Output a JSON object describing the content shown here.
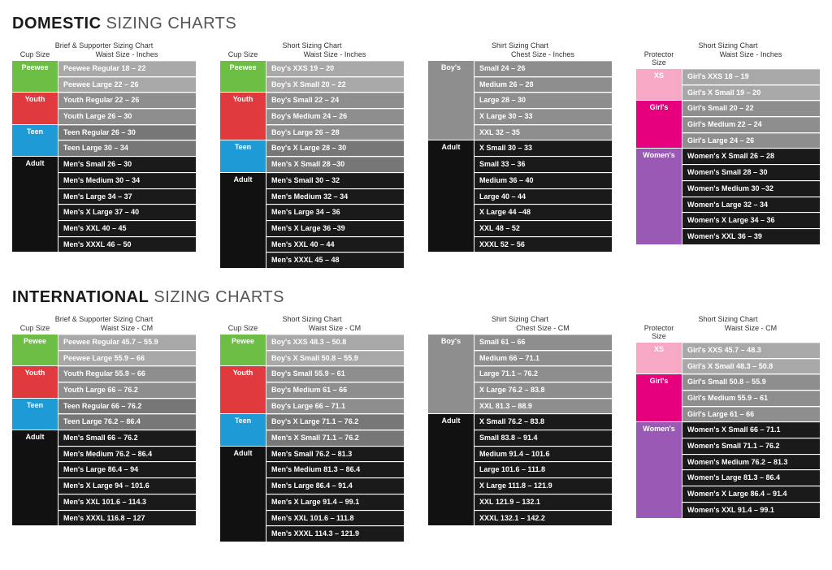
{
  "titles": {
    "domestic_bold": "DOMESTIC",
    "domestic_light": " SIZING CHARTS",
    "international_bold": "INTERNATIONAL",
    "international_light": " SIZING CHARTS"
  },
  "colors": {
    "bg_white": "#ffffff",
    "text_dark": "#333333",
    "peewee": "#6cbe45",
    "peewee_row": "#a8a8a8",
    "youth": "#e03a3e",
    "youth_row": "#8e8e8e",
    "teen": "#1e9bd7",
    "teen_row": "#777777",
    "adult": "#111111",
    "adult_row": "#1a1a1a",
    "boys_label": "#8e8e8e",
    "boys_row": "#8e8e8e",
    "adult_shirt": "#111111",
    "xs": "#f7a8c4",
    "xs_row": "#a8a8a8",
    "girls": "#e6007e",
    "girls_row": "#8e8e8e",
    "womens": "#9b59b6",
    "womens_row": "#1a1a1a",
    "row_border": "#3a3a3a"
  },
  "domestic": {
    "charts": [
      {
        "title": "Brief & Supporter Sizing Chart",
        "col1": "Cup Size",
        "col2": "Waist Size - Inches",
        "groups": [
          {
            "label": "Peewee",
            "labelColor": "peewee",
            "rowColor": "peewee_row",
            "rows": [
              "Peewee Regular 18 – 22",
              "Peewee Large 22 – 26"
            ]
          },
          {
            "label": "Youth",
            "labelColor": "youth",
            "rowColor": "youth_row",
            "rows": [
              "Youth Regular 22 – 26",
              "Youth Large 26 – 30"
            ]
          },
          {
            "label": "Teen",
            "labelColor": "teen",
            "rowColor": "teen_row",
            "rows": [
              "Teen Regular 26 – 30",
              "Teen Large 30 – 34"
            ]
          },
          {
            "label": "Adult",
            "labelColor": "adult",
            "rowColor": "adult_row",
            "rows": [
              "Men's Small 26 – 30",
              "Men's Medium 30 – 34",
              "Men's Large 34 – 37",
              "Men's X Large 37 – 40",
              "Men's XXL 40 – 45",
              "Men's XXXL 46 – 50"
            ]
          }
        ]
      },
      {
        "title": "Short Sizing Chart",
        "col1": "Cup Size",
        "col2": "Waist Size - Inches",
        "groups": [
          {
            "label": "Peewee",
            "labelColor": "peewee",
            "rowColor": "peewee_row",
            "rows": [
              "Boy's XXS 19 – 20",
              "Boy's X Small 20 – 22"
            ]
          },
          {
            "label": "Youth",
            "labelColor": "youth",
            "rowColor": "youth_row",
            "rows": [
              "Boy's Small 22 – 24",
              "Boy's Medium 24 – 26",
              "Boy's Large 26 – 28"
            ]
          },
          {
            "label": "Teen",
            "labelColor": "teen",
            "rowColor": "teen_row",
            "rows": [
              "Boy's X Large 28 – 30",
              "Men's X Small 28 –30"
            ]
          },
          {
            "label": "Adult",
            "labelColor": "adult",
            "rowColor": "adult_row",
            "rows": [
              "Men's Small 30 – 32",
              "Men's Medium 32 – 34",
              "Men's Large 34 – 36",
              "Men's X Large 36 –39",
              "Men's XXL 40 – 44",
              "Men's XXXL 45 – 48"
            ]
          }
        ]
      },
      {
        "title": "Shirt Sizing Chart",
        "col1": "",
        "col2": "Chest Size - Inches",
        "groups": [
          {
            "label": "Boy's",
            "labelColor": "boys_label",
            "rowColor": "boys_row",
            "rows": [
              "Small 24 – 26",
              "Medium 26 – 28",
              "Large 28 – 30",
              "X Large 30 – 33",
              "XXL 32 – 35"
            ]
          },
          {
            "label": "Adult",
            "labelColor": "adult",
            "rowColor": "adult_row",
            "rows": [
              "X Small 30 – 33",
              "Small 33 – 36",
              "Medium 36 – 40",
              "Large 40 – 44",
              "X Large 44 –48",
              "XXL 48 – 52",
              "XXXL 52 – 56"
            ]
          }
        ]
      },
      {
        "title": "Short Sizing Chart",
        "col1": "Protector Size",
        "col2": "Waist Size - Inches",
        "groups": [
          {
            "label": "XS",
            "labelColor": "xs",
            "rowColor": "xs_row",
            "rows": [
              "Girl's XXS 18 – 19",
              "Girl's X Small 19 – 20"
            ]
          },
          {
            "label": "Girl's",
            "labelColor": "girls",
            "rowColor": "girls_row",
            "rows": [
              "Girl's Small 20 – 22",
              "Girl's Medium 22 – 24",
              "Girl's Large 24 – 26"
            ]
          },
          {
            "label": "Women's",
            "labelColor": "womens",
            "rowColor": "womens_row",
            "rows": [
              "Women's X Small 26 – 28",
              "Women's Small 28 – 30",
              "Women's Medium 30 –32",
              "Women's Large 32 – 34",
              "Women's X Large 34 – 36",
              "Women's XXL 36 – 39"
            ]
          }
        ]
      }
    ]
  },
  "international": {
    "charts": [
      {
        "title": "Brief & Supporter Sizing Chart",
        "col1": "Cup Size",
        "col2": "Waist Size - CM",
        "groups": [
          {
            "label": "Pewee",
            "labelColor": "peewee",
            "rowColor": "peewee_row",
            "rows": [
              "Peewee Regular 45.7 – 55.9",
              "Peewee Large 55.9 – 66"
            ]
          },
          {
            "label": "Youth",
            "labelColor": "youth",
            "rowColor": "youth_row",
            "rows": [
              "Youth Regular 55.9 – 66",
              "Youth Large 66 – 76.2"
            ]
          },
          {
            "label": "Teen",
            "labelColor": "teen",
            "rowColor": "teen_row",
            "rows": [
              "Teen Regular 66 – 76.2",
              "Teen Large 76.2 – 86.4"
            ]
          },
          {
            "label": "Adult",
            "labelColor": "adult",
            "rowColor": "adult_row",
            "rows": [
              "Men's Small 66 – 76.2",
              "Men's Medium 76.2 – 86.4",
              "Men's Large 86.4 – 94",
              "Men's X Large 94 – 101.6",
              "Men's XXL 101.6 – 114.3",
              "Men's XXXL 116.8 – 127"
            ]
          }
        ]
      },
      {
        "title": "Short Sizing Chart",
        "col1": "Cup Size",
        "col2": "Waist Size - CM",
        "groups": [
          {
            "label": "Pewee",
            "labelColor": "peewee",
            "rowColor": "peewee_row",
            "rows": [
              "Boy's XXS 48.3 – 50.8",
              "Boy's X Small 50.8 – 55.9"
            ]
          },
          {
            "label": "Youth",
            "labelColor": "youth",
            "rowColor": "youth_row",
            "rows": [
              "Boy's Small 55.9 – 61",
              "Boy's Medium 61 – 66",
              "Boy's Large 66 – 71.1"
            ]
          },
          {
            "label": "Teen",
            "labelColor": "teen",
            "rowColor": "teen_row",
            "rows": [
              "Boy's X Large 71.1 – 76.2",
              "Men's X Small 71.1 – 76.2"
            ]
          },
          {
            "label": "Adult",
            "labelColor": "adult",
            "rowColor": "adult_row",
            "rows": [
              "Men's Small 76.2 – 81.3",
              "Men's Medium 81.3 – 86.4",
              "Men's Large 86.4 – 91.4",
              "Men's X Large 91.4 – 99.1",
              "Men's XXL 101.6 – 111.8",
              "Men's XXXL 114.3 – 121.9"
            ]
          }
        ]
      },
      {
        "title": "Shirt Sizing Chart",
        "col1": "",
        "col2": "Chest Size - CM",
        "groups": [
          {
            "label": "Boy's",
            "labelColor": "boys_label",
            "rowColor": "boys_row",
            "rows": [
              "Small 61 – 66",
              "Medium 66 – 71.1",
              "Large 71.1 – 76.2",
              "X Large 76.2 – 83.8",
              "XXL 81.3 – 88.9"
            ]
          },
          {
            "label": "Adult",
            "labelColor": "adult",
            "rowColor": "adult_row",
            "rows": [
              "X Small 76.2 – 83.8",
              "Small 83.8 – 91.4",
              "Medium 91.4 – 101.6",
              "Large 101.6 – 111.8",
              "X Large 111.8 – 121.9",
              "XXL 121.9 – 132.1",
              "XXXL 132.1 – 142.2"
            ]
          }
        ]
      },
      {
        "title": "Short Sizing Chart",
        "col1": "Protector Size",
        "col2": "Waist Size - CM",
        "groups": [
          {
            "label": "XS",
            "labelColor": "xs",
            "rowColor": "xs_row",
            "rows": [
              "Girl's XXS 45.7 – 48.3",
              "Girl's X Small 48.3 – 50.8"
            ]
          },
          {
            "label": "Girl's",
            "labelColor": "girls",
            "rowColor": "girls_row",
            "rows": [
              "Girl's Small 50.8 – 55.9",
              "Girl's Medium 55.9 – 61",
              "Girl's Large 61 – 66"
            ]
          },
          {
            "label": "Women's",
            "labelColor": "womens",
            "rowColor": "womens_row",
            "rows": [
              "Women's X Small 66 – 71.1",
              "Women's Small 71.1 – 76.2",
              "Women's Medium 76.2 – 81.3",
              "Women's Large 81.3 – 86.4",
              "Women's X Large 86.4 – 91.4",
              "Women's XXL 91.4 – 99.1"
            ]
          }
        ]
      }
    ]
  }
}
